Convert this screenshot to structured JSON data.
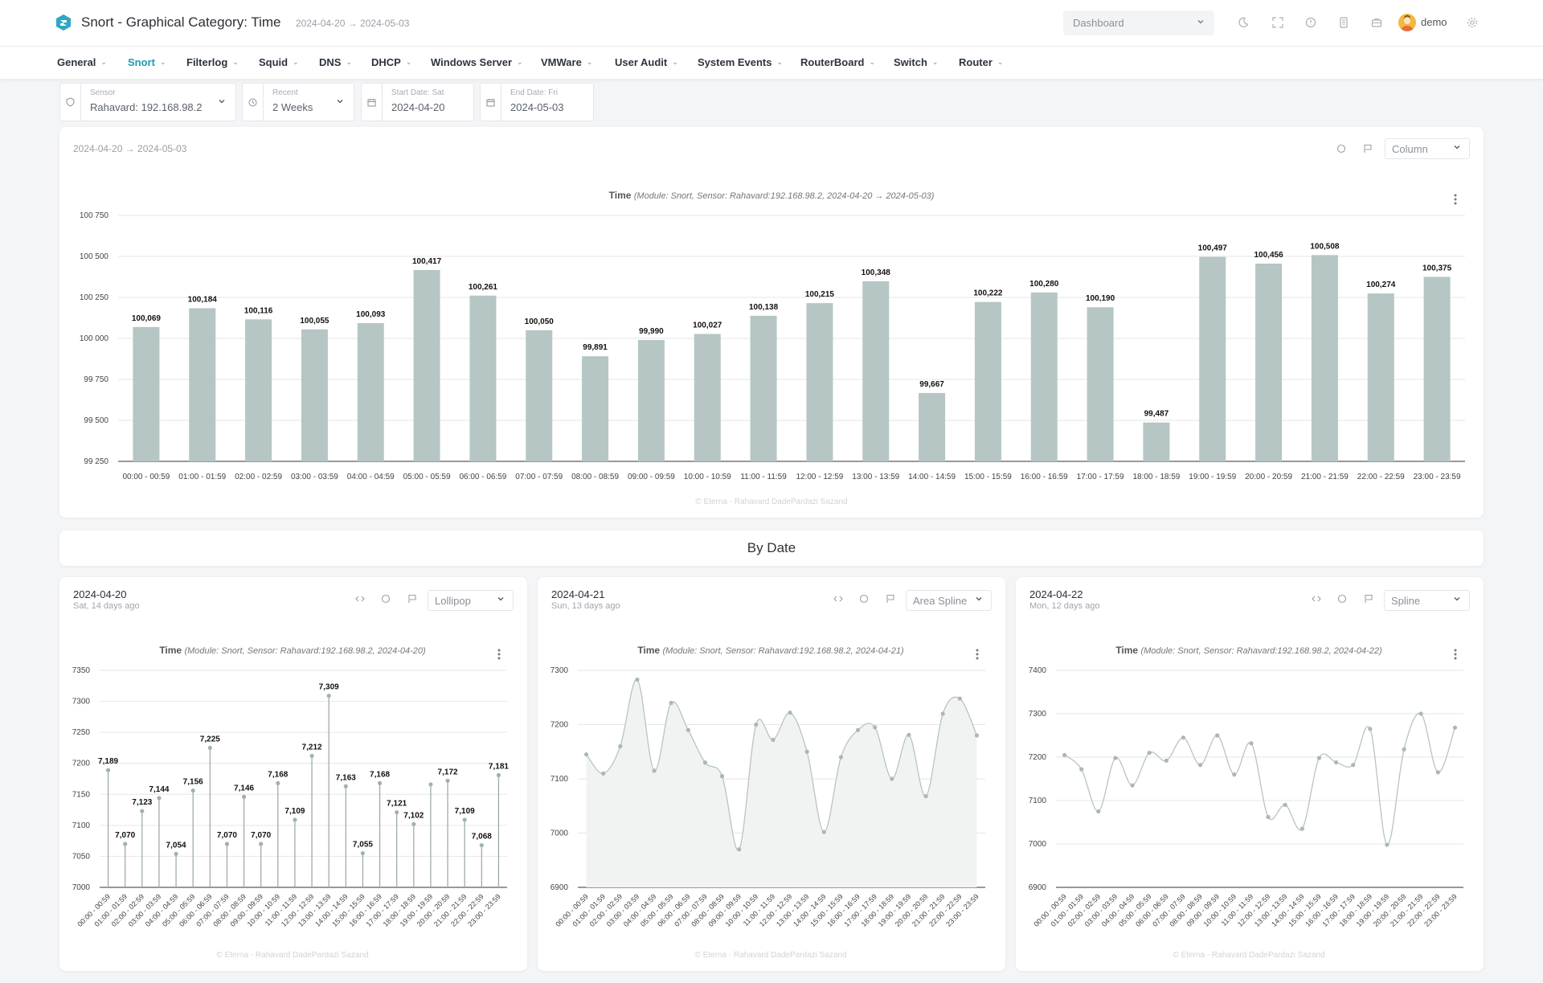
{
  "header": {
    "title": "Snort - Graphical Category: Time",
    "range": "2024-04-20 → 2024-05-03",
    "dashboard_select": "Dashboard",
    "user": "demo"
  },
  "nav": [
    {
      "label": "General",
      "active": false
    },
    {
      "label": "Snort",
      "active": true
    },
    {
      "label": "Filterlog",
      "active": false
    },
    {
      "label": "Squid",
      "active": false
    },
    {
      "label": "DNS",
      "active": false
    },
    {
      "label": "DHCP",
      "active": false
    },
    {
      "label": "Windows Server",
      "active": false
    },
    {
      "label": "VMWare",
      "active": false
    },
    {
      "label": "User Audit",
      "active": false
    },
    {
      "label": "System Events",
      "active": false
    },
    {
      "label": "RouterBoard",
      "active": false
    },
    {
      "label": "Switch",
      "active": false
    },
    {
      "label": "Router",
      "active": false
    }
  ],
  "filters": {
    "sensor_label": "Sensor",
    "sensor_value": "Rahavard: 192.168.98.2",
    "recent_label": "Recent",
    "recent_value": "2 Weeks",
    "start_label": "Start Date: Sat",
    "start_value": "2024-04-20",
    "end_label": "End Date: Fri",
    "end_value": "2024-05-03"
  },
  "main_card": {
    "range": "2024-04-20 → 2024-05-03",
    "chart_type_select": "Column"
  },
  "section_title": "By Date",
  "small_cards": [
    {
      "date": "2024-04-20",
      "sub": "Sat, 14 days ago",
      "select": "Lollipop"
    },
    {
      "date": "2024-04-21",
      "sub": "Sun, 13 days ago",
      "select": "Area Spline"
    },
    {
      "date": "2024-04-22",
      "sub": "Mon, 12 days ago",
      "select": "Spline"
    }
  ],
  "colors": {
    "accent": "#1a9bb0",
    "bar": "#b5c6c4",
    "line": "#b8c4c2"
  },
  "chart_data": [
    {
      "type": "bar",
      "title": "Time",
      "subtitle": "(Module: Snort, Sensor: Rahavard:192.168.98.2, 2024-04-20 → 2024-05-03)",
      "credit": "© Eterna - Rahavard DadePardazi Sazand",
      "categories": [
        "00:00 - 00:59",
        "01:00 - 01:59",
        "02:00 - 02:59",
        "03:00 - 03:59",
        "04:00 - 04:59",
        "05:00 - 05:59",
        "06:00 - 06:59",
        "07:00 - 07:59",
        "08:00 - 08:59",
        "09:00 - 09:59",
        "10:00 - 10:59",
        "11:00 - 11:59",
        "12:00 - 12:59",
        "13:00 - 13:59",
        "14:00 - 14:59",
        "15:00 - 15:59",
        "16:00 - 16:59",
        "17:00 - 17:59",
        "18:00 - 18:59",
        "19:00 - 19:59",
        "20:00 - 20:59",
        "21:00 - 21:59",
        "22:00 - 22:59",
        "23:00 - 23:59"
      ],
      "values": [
        100069,
        100184,
        100116,
        100055,
        100093,
        100417,
        100261,
        100050,
        99891,
        99990,
        100027,
        100138,
        100215,
        100348,
        99667,
        100222,
        100280,
        100190,
        99487,
        100497,
        100456,
        100508,
        100274,
        100375
      ],
      "data_labels": [
        "100,069",
        "100,184",
        "100,116",
        "100,055",
        "100,093",
        "100,417",
        "100,261",
        "100,050",
        "99,891",
        "99,990",
        "100,027",
        "100,138",
        "100,215",
        "100,348",
        "99,667",
        "100,222",
        "100,280",
        "100,190",
        "99,487",
        "100,497",
        "100,456",
        "100,508",
        "100,274",
        "100,375"
      ],
      "yticks": [
        "99 250",
        "99 500",
        "99 750",
        "100 000",
        "100 250",
        "100 500",
        "100 750"
      ],
      "ylim": [
        99250,
        100750
      ]
    },
    {
      "type": "lollipop",
      "title": "Time",
      "subtitle": "(Module: Snort, Sensor: Rahavard:192.168.98.2, 2024-04-20)",
      "credit": "© Eterna - Rahavard DadePardazi Sazand",
      "categories": [
        "00:00 - 00:59",
        "01:00 - 01:59",
        "02:00 - 02:59",
        "03:00 - 03:59",
        "04:00 - 04:59",
        "05:00 - 05:59",
        "06:00 - 06:59",
        "07:00 - 07:59",
        "08:00 - 08:59",
        "09:00 - 09:59",
        "10:00 - 10:59",
        "11:00 - 11:59",
        "12:00 - 12:59",
        "13:00 - 13:59",
        "14:00 - 14:59",
        "15:00 - 15:59",
        "16:00 - 16:59",
        "17:00 - 17:59",
        "18:00 - 18:59",
        "19:00 - 19:59",
        "20:00 - 20:59",
        "21:00 - 21:59",
        "22:00 - 22:59",
        "23:00 - 23:59"
      ],
      "values": [
        7189,
        7070,
        7123,
        7144,
        7054,
        7156,
        7225,
        7070,
        7146,
        7070,
        7168,
        7109,
        7212,
        7309,
        7163,
        7055,
        7168,
        7121,
        7102,
        7166,
        7172,
        7109,
        7068,
        7181
      ],
      "data_labels": [
        "7,189",
        "7,070",
        "7,123",
        "7,144",
        "7,054",
        "7,156",
        "7,225",
        "7,070",
        "7,146",
        "7,070",
        "7,168",
        "7,109",
        "7,212",
        "7,309",
        "7,163",
        "7,055",
        "7,168",
        "7,121",
        "7,102",
        "",
        "7,172",
        "7,109",
        "7,068",
        "7,181"
      ],
      "yticks": [
        "7000",
        "7050",
        "7100",
        "7150",
        "7200",
        "7250",
        "7300",
        "7350"
      ],
      "ylim": [
        7000,
        7350
      ]
    },
    {
      "type": "area",
      "title": "Time",
      "subtitle": "(Module: Snort, Sensor: Rahavard:192.168.98.2, 2024-04-21)",
      "credit": "© Eterna - Rahavard DadePardazi Sazand",
      "categories": [
        "00:00 - 00:59",
        "01:00 - 01:59",
        "02:00 - 02:59",
        "03:00 - 03:59",
        "04:00 - 04:59",
        "05:00 - 05:59",
        "06:00 - 06:59",
        "07:00 - 07:59",
        "08:00 - 08:59",
        "09:00 - 09:59",
        "10:00 - 10:59",
        "11:00 - 11:59",
        "12:00 - 12:59",
        "13:00 - 13:59",
        "14:00 - 14:59",
        "15:00 - 15:59",
        "16:00 - 16:59",
        "17:00 - 17:59",
        "18:00 - 18:59",
        "19:00 - 19:59",
        "20:00 - 20:59",
        "21:00 - 21:59",
        "22:00 - 22:59",
        "23:00 - 23:59"
      ],
      "values": [
        7145,
        7110,
        7160,
        7283,
        7115,
        7240,
        7190,
        7130,
        7105,
        6970,
        7200,
        7172,
        7222,
        7150,
        7002,
        7140,
        7190,
        7195,
        7100,
        7181,
        7068,
        7220,
        7248,
        7180
      ],
      "yticks": [
        "6900",
        "7000",
        "7100",
        "7200",
        "7300"
      ],
      "ylim": [
        6900,
        7300
      ]
    },
    {
      "type": "line",
      "title": "Time",
      "subtitle": "(Module: Snort, Sensor: Rahavard:192.168.98.2, 2024-04-22)",
      "credit": "© Eterna - Rahavard DadePardazi Sazand",
      "categories": [
        "00:00 - 00:59",
        "01:00 - 01:59",
        "02:00 - 02:59",
        "03:00 - 03:59",
        "04:00 - 04:59",
        "05:00 - 05:59",
        "06:00 - 06:59",
        "07:00 - 07:59",
        "08:00 - 08:59",
        "09:00 - 09:59",
        "10:00 - 10:59",
        "11:00 - 11:59",
        "12:00 - 12:59",
        "13:00 - 13:59",
        "14:00 - 14:59",
        "15:00 - 15:59",
        "16:00 - 16:59",
        "17:00 - 17:59",
        "18:00 - 18:59",
        "19:00 - 19:59",
        "20:00 - 20:59",
        "21:00 - 21:59",
        "22:00 - 22:59",
        "23:00 - 23:59"
      ],
      "values": [
        7205,
        7172,
        7075,
        7198,
        7135,
        7210,
        7192,
        7245,
        7182,
        7250,
        7160,
        7232,
        7062,
        7090,
        7035,
        7198,
        7188,
        7182,
        7265,
        6998,
        7218,
        7300,
        7165,
        7268
      ],
      "yticks": [
        "6900",
        "7000",
        "7100",
        "7200",
        "7300",
        "7400"
      ],
      "ylim": [
        6900,
        7400
      ]
    }
  ]
}
